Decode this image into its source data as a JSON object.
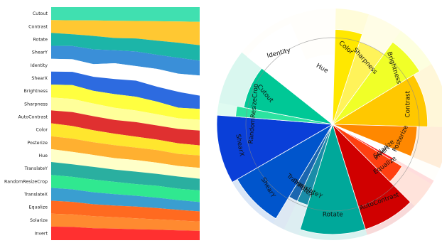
{
  "chart_data": [
    {
      "type": "area",
      "title": "",
      "xlabel": "",
      "ylabel": "",
      "grid": false,
      "legend": "none",
      "x": [
        0,
        1,
        2,
        3,
        4,
        5,
        6,
        7
      ],
      "series": [
        {
          "name": "Cutout",
          "color": "#40E0B0",
          "values": [
            19,
            19,
            19,
            19,
            19,
            19,
            19,
            19
          ]
        },
        {
          "name": "Contrast",
          "color": "#FFC832",
          "values": [
            19,
            20,
            22,
            24,
            24,
            26,
            28,
            30
          ]
        },
        {
          "name": "Rotate",
          "color": "#1CB5A8",
          "values": [
            19,
            17,
            19,
            17,
            18,
            19,
            20,
            20
          ]
        },
        {
          "name": "ShearY",
          "color": "#3A8FD8",
          "values": [
            19,
            19,
            21,
            18,
            20,
            19,
            21,
            19
          ]
        },
        {
          "name": "Identity",
          "color": "#FFFFFF",
          "values": [
            19,
            18,
            18,
            22,
            20,
            24,
            24,
            26
          ]
        },
        {
          "name": "ShearX",
          "color": "#2D6BE0",
          "values": [
            19,
            19,
            20,
            21,
            22,
            20,
            21,
            17
          ]
        },
        {
          "name": "Brightness",
          "color": "#FFFF40",
          "values": [
            19,
            20,
            18,
            19,
            19,
            17,
            14,
            14
          ]
        },
        {
          "name": "Sharpness",
          "color": "#FFFF9A",
          "values": [
            19,
            19,
            18,
            17,
            16,
            15,
            14,
            14
          ]
        },
        {
          "name": "AutoContrast",
          "color": "#E03030",
          "values": [
            19,
            20,
            20,
            19,
            20,
            19,
            19,
            19
          ]
        },
        {
          "name": "Color",
          "color": "#FFE62E",
          "values": [
            19,
            18,
            17,
            16,
            15,
            14,
            14,
            13
          ]
        },
        {
          "name": "Posterize",
          "color": "#FFB030",
          "values": [
            19,
            19,
            18,
            18,
            17,
            17,
            16,
            16
          ]
        },
        {
          "name": "Hue",
          "color": "#FFFFC8",
          "values": [
            19,
            18,
            17,
            16,
            16,
            15,
            14,
            14
          ]
        },
        {
          "name": "TranslateY",
          "color": "#2AAFA0",
          "values": [
            19,
            18,
            18,
            17,
            17,
            16,
            16,
            15
          ]
        },
        {
          "name": "RandomResizeCrop",
          "color": "#30E890",
          "values": [
            19,
            18,
            18,
            17,
            16,
            16,
            15,
            15
          ]
        },
        {
          "name": "TranslateX",
          "color": "#3A9ED0",
          "values": [
            19,
            18,
            17,
            16,
            15,
            14,
            13,
            12
          ]
        },
        {
          "name": "Equalize",
          "color": "#FF6A20",
          "values": [
            19,
            18,
            17,
            16,
            16,
            15,
            14,
            13
          ]
        },
        {
          "name": "Solarize",
          "color": "#FF8A30",
          "values": [
            19,
            18,
            17,
            16,
            15,
            14,
            13,
            12
          ]
        },
        {
          "name": "Invert",
          "color": "#FF3030",
          "values": [
            20,
            19,
            17,
            16,
            15,
            14,
            13,
            12
          ]
        }
      ]
    },
    {
      "type": "pie",
      "title": "",
      "legend": "none",
      "center_shading": "#888888",
      "slices": [
        {
          "label": "ShearX",
          "value": 10.0,
          "color": "#0A3FD8",
          "radius": 1.0,
          "label_rotation": 80
        },
        {
          "label": "RandomResizeCrop",
          "value": 1.8,
          "color": "#2BE3A0",
          "radius": 0.84,
          "label_rotation": -85
        },
        {
          "label": "Cutout",
          "value": 8.0,
          "color": "#00C896",
          "radius": 0.78,
          "label_rotation": 50
        },
        {
          "label": "Identity",
          "value": 8.4,
          "color": "#FFFFFF",
          "radius": 0.94,
          "label_rotation": -14
        },
        {
          "label": "Hue",
          "value": 7.0,
          "color": "#FFFFFF",
          "radius": 0.6,
          "label_rotation": 30
        },
        {
          "label": "Color",
          "value": 4.8,
          "color": "#FFE800",
          "radius": 0.82,
          "label_rotation": 42
        },
        {
          "label": "Sharpness",
          "value": 5.2,
          "color": "#FFF35A",
          "radius": 0.75,
          "label_rotation": 48
        },
        {
          "label": "Brightness",
          "value": 6.5,
          "color": "#F0FF28",
          "radius": 0.88,
          "label_rotation": 72
        },
        {
          "label": "Contrast",
          "value": 9.5,
          "color": "#FFC800",
          "radius": 0.82,
          "label_rotation": -90
        },
        {
          "label": "Posterize",
          "value": 6.0,
          "color": "#FF8800",
          "radius": 0.73,
          "label_rotation": -65
        },
        {
          "label": "Solarize",
          "value": 2.0,
          "color": "#FFFFFF",
          "radius": 0.6,
          "label_rotation": -40
        },
        {
          "label": "Invert",
          "value": 0.6,
          "color": "#FF1E1E",
          "radius": 0.6,
          "label_rotation": -40
        },
        {
          "label": "Equalize",
          "value": 4.0,
          "color": "#FF4010",
          "radius": 0.7,
          "label_rotation": -35
        },
        {
          "label": "AutoContrast",
          "value": 8.0,
          "color": "#D00000",
          "radius": 0.95,
          "label_rotation": -20
        },
        {
          "label": "Rotate",
          "value": 10.0,
          "color": "#00A89A",
          "radius": 0.95,
          "label_rotation": 0
        },
        {
          "label": "TranslateY",
          "value": 2.2,
          "color": "#1A8CA8",
          "radius": 0.73,
          "label_rotation": 30
        },
        {
          "label": "TranslateX",
          "value": 1.8,
          "color": "#1A66B0",
          "radius": 0.73,
          "label_rotation": 40
        },
        {
          "label": "ShearY",
          "value": 8.4,
          "color": "#0055CC",
          "radius": 0.95,
          "label_rotation": 60
        }
      ]
    }
  ]
}
